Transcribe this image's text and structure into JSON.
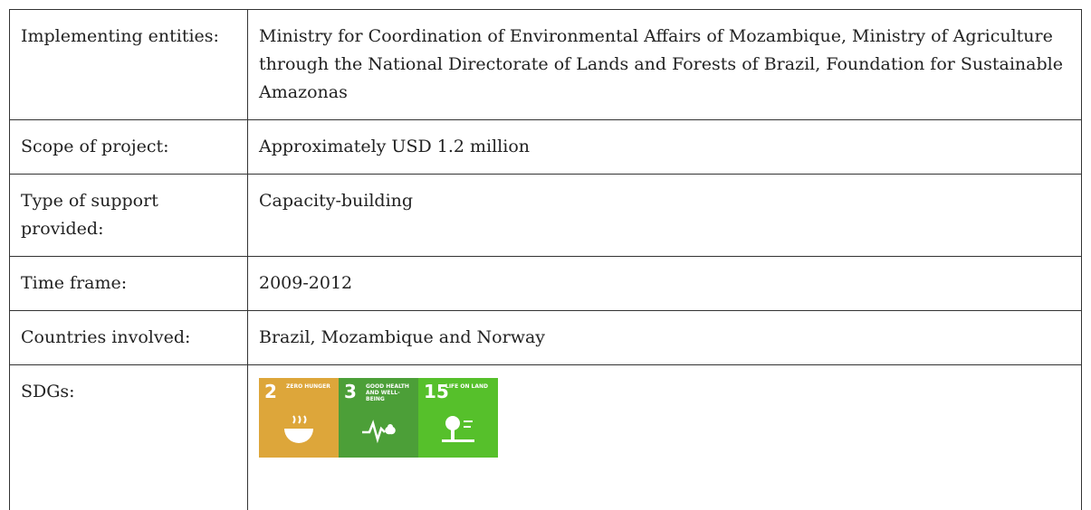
{
  "table": {
    "rows": [
      [
        "Implementing entities:",
        "Ministry for Coordination of Environmental Affairs of Mozambique, Ministry of Agriculture through the National Directorate of Lands and Forests of Brazil, Foundation for Sustainable Amazonas"
      ],
      [
        "Scope of project:",
        "Approximately USD 1.2 million"
      ],
      [
        "Type of support provided:",
        "Capacity-building"
      ],
      [
        "Time frame:",
        "2009-2012"
      ],
      [
        "Countries involved:",
        "Brazil, Mozambique and Norway"
      ],
      [
        "SDGs:"
      ]
    ],
    "sdgs": [
      {
        "number": "2",
        "label": "Zero hunger",
        "color": "#DDA63A"
      },
      {
        "number": "3",
        "label": "Good health and well-being",
        "color": "#4C9F38"
      },
      {
        "number": "15",
        "label": "Life on land",
        "color": "#56C02B"
      }
    ]
  }
}
